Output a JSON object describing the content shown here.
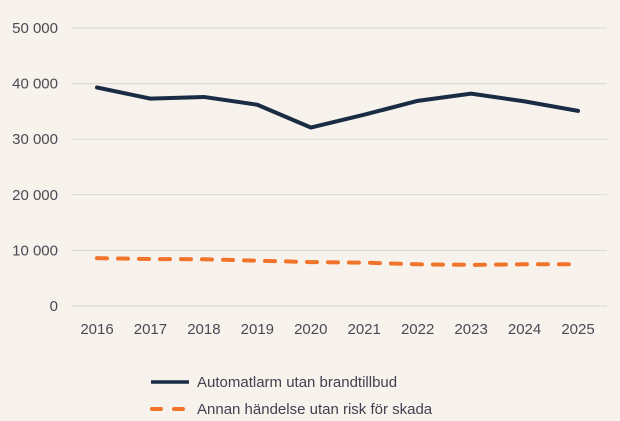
{
  "chart_data": {
    "type": "line",
    "categories": [
      "2016",
      "2017",
      "2018",
      "2019",
      "2020",
      "2021",
      "2022",
      "2023",
      "2024",
      "2025"
    ],
    "series": [
      {
        "name": "Automatlarm utan brandtillbud",
        "values": [
          39300,
          37300,
          37600,
          36200,
          32100,
          34400,
          36900,
          38200,
          36800,
          35100
        ],
        "color": "#1a2b44",
        "dashed": false
      },
      {
        "name": "Annan händelse utan risk för skada",
        "values": [
          8600,
          8450,
          8400,
          8150,
          7900,
          7800,
          7500,
          7400,
          7500,
          7500
        ],
        "color": "#f0742a",
        "dashed": true
      }
    ],
    "ylim": [
      0,
      50000
    ],
    "yticks": [
      0,
      10000,
      20000,
      30000,
      40000,
      50000
    ],
    "ytick_labels": [
      "0",
      "10 000",
      "20 000",
      "30 000",
      "40 000",
      "50 000"
    ],
    "grid": "horizontal",
    "legend_position": "bottom-left"
  },
  "colors": {
    "background": "#f7f2ec",
    "gridline": "#d9d7d3",
    "tick_text": "#4a4a54",
    "legend_text": "#414150"
  }
}
